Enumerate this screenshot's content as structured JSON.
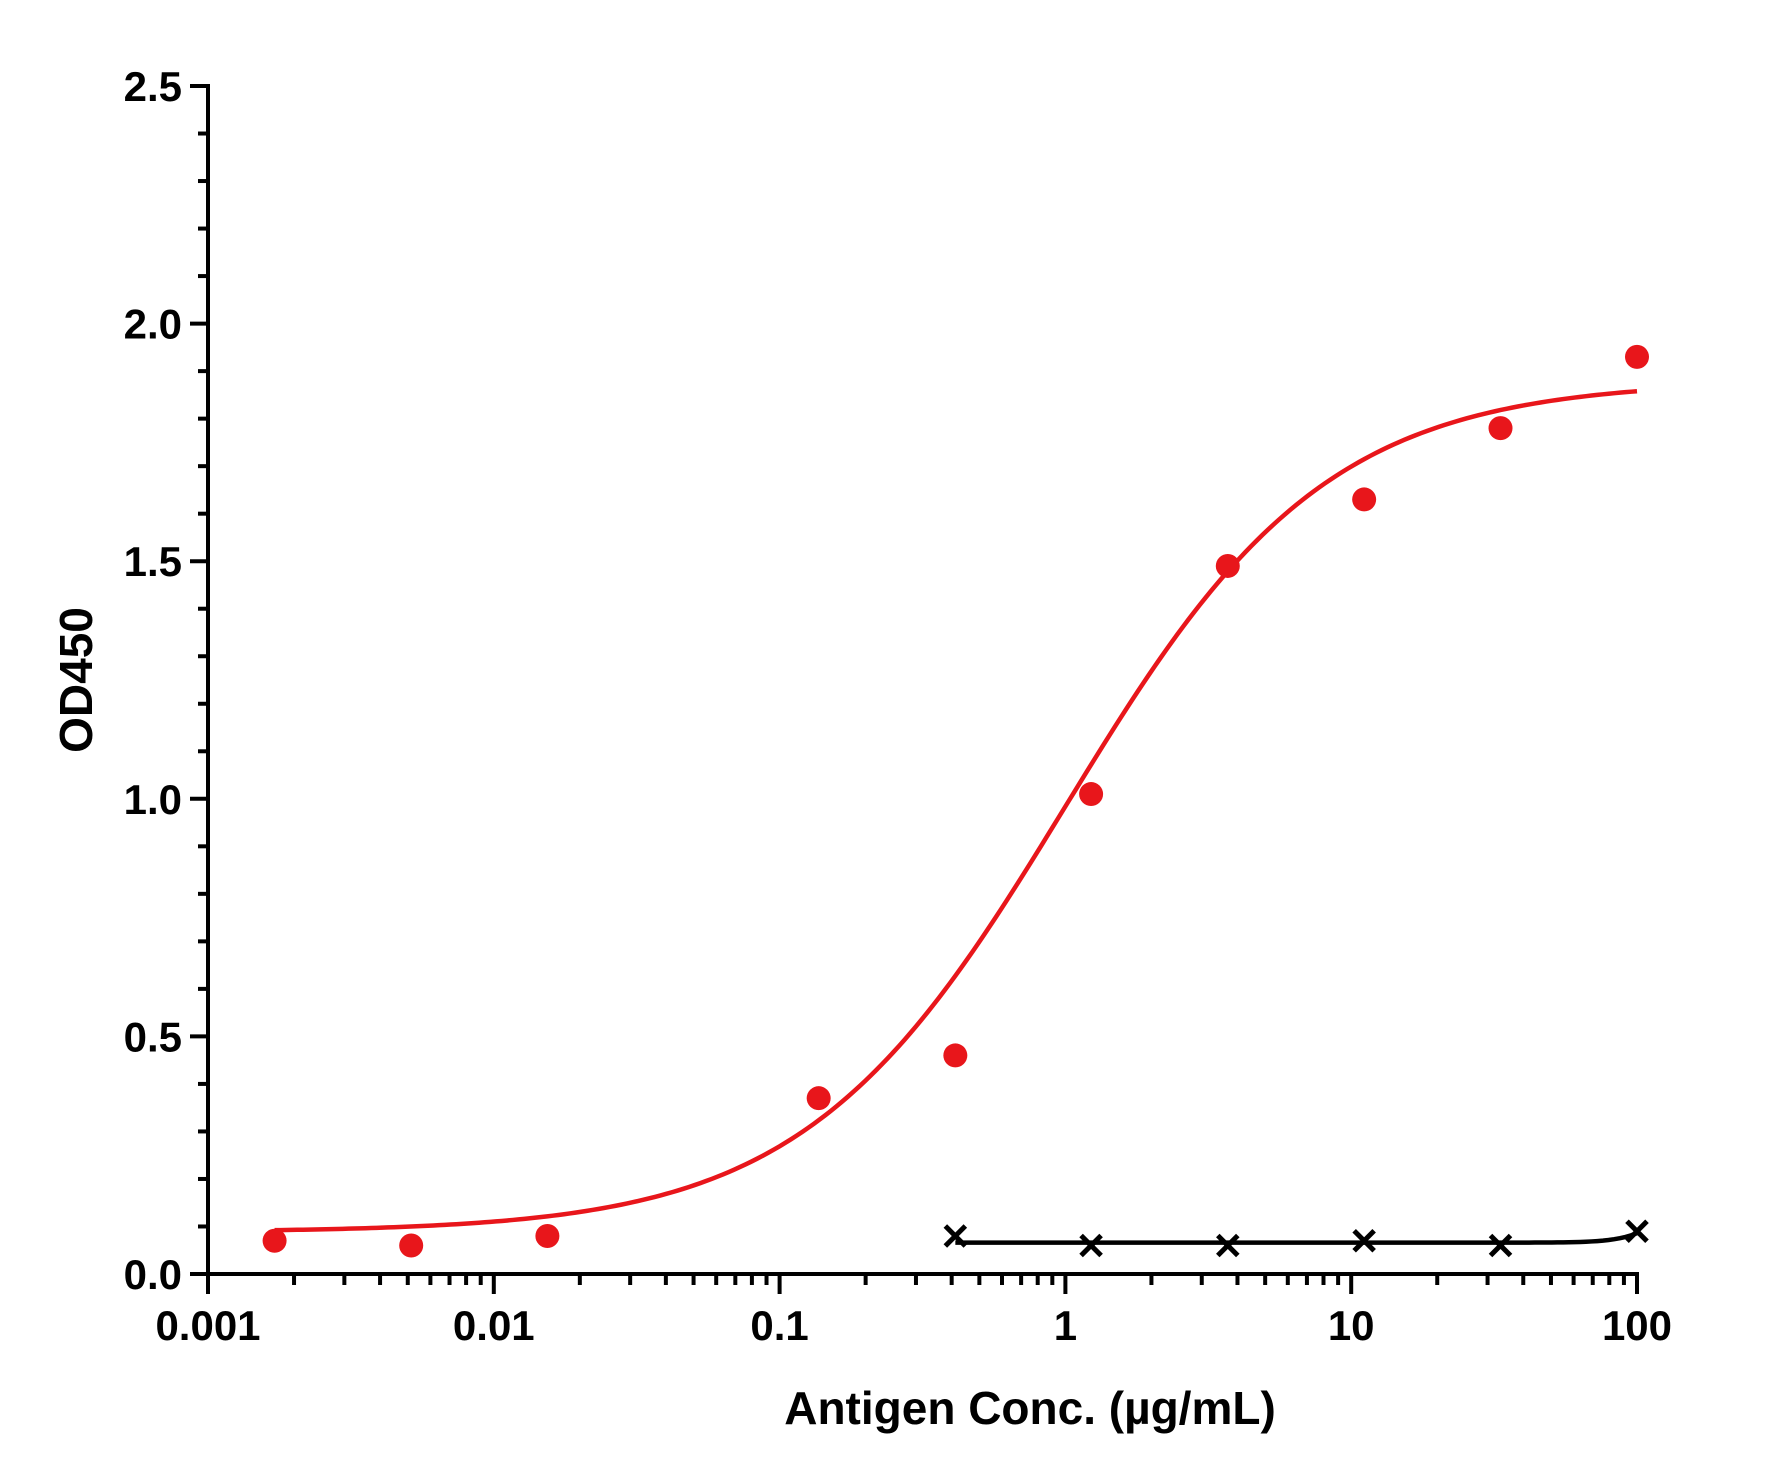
{
  "chart_data": {
    "type": "scatter",
    "title": "",
    "xlabel": "Antigen Conc. (µg/mL)",
    "ylabel": "OD450",
    "x_scale": "log",
    "xlim": [
      0.001,
      100
    ],
    "ylim": [
      0,
      2.5
    ],
    "x_ticks": [
      0.001,
      0.01,
      0.1,
      1,
      10,
      100
    ],
    "x_tick_labels": [
      "0.001",
      "0.01",
      "0.1",
      "1",
      "10",
      "100"
    ],
    "y_ticks": [
      0,
      0.5,
      1,
      1.5,
      2,
      2.5
    ],
    "y_tick_labels": [
      "0.0",
      "0.5",
      "1.0",
      "1.5",
      "2.0",
      "2.5"
    ],
    "grid": false,
    "legend": "none",
    "series": [
      {
        "marker": "circle",
        "color": "#e8161b",
        "fit": "sigmoidal",
        "x": [
          0.00171,
          0.00514,
          0.0154,
          0.137,
          0.412,
          1.23,
          3.7,
          11.1,
          33.3,
          100
        ],
        "y": [
          0.07,
          0.06,
          0.08,
          0.37,
          0.46,
          1.01,
          1.49,
          1.63,
          1.78,
          1.93
        ]
      },
      {
        "marker": "x",
        "color": "#000000",
        "fit": "flat",
        "x": [
          0.412,
          1.23,
          3.7,
          11.1,
          33.3,
          100
        ],
        "y": [
          0.08,
          0.06,
          0.06,
          0.07,
          0.06,
          0.09
        ]
      }
    ]
  }
}
